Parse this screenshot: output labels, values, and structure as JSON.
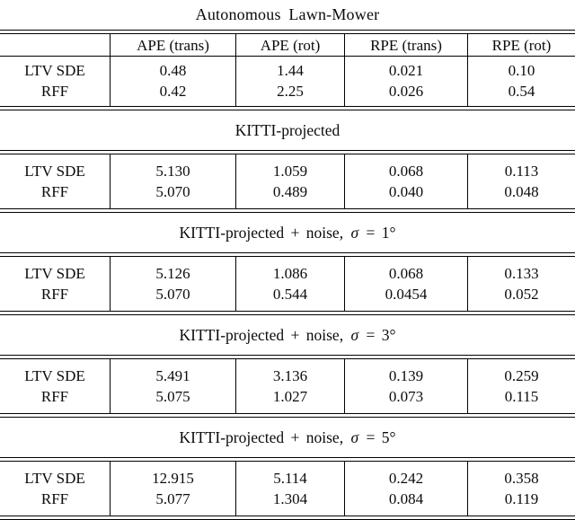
{
  "page": {
    "background_color": "#ffffff",
    "text_color": "#0b0b0b",
    "rule_color": "#000000"
  },
  "table": {
    "columns": [
      "",
      "APE (trans)",
      "APE (rot)",
      "RPE (trans)",
      "RPE (rot)"
    ],
    "sections": [
      {
        "title": "Autonomous Lawn-Mower",
        "rows": [
          {
            "label": "LTV SDE",
            "values": [
              "0.48",
              "1.44",
              "0.021",
              "0.10"
            ]
          },
          {
            "label": "RFF",
            "values": [
              "0.42",
              "2.25",
              "0.026",
              "0.54"
            ]
          }
        ]
      },
      {
        "title": "KITTI-projected",
        "rows": [
          {
            "label": "LTV SDE",
            "values": [
              "5.130",
              "1.059",
              "0.068",
              "0.113"
            ]
          },
          {
            "label": "RFF",
            "values": [
              "5.070",
              "0.489",
              "0.040",
              "0.048"
            ]
          }
        ]
      },
      {
        "title_prefix": "KITTI-projected + noise, ",
        "sigma": "σ",
        "title_suffix": " = 1°",
        "rows": [
          {
            "label": "LTV SDE",
            "values": [
              "5.126",
              "1.086",
              "0.068",
              "0.133"
            ]
          },
          {
            "label": "RFF",
            "values": [
              "5.070",
              "0.544",
              "0.0454",
              "0.052"
            ]
          }
        ]
      },
      {
        "title_prefix": "KITTI-projected + noise, ",
        "sigma": "σ",
        "title_suffix": " = 3°",
        "rows": [
          {
            "label": "LTV SDE",
            "values": [
              "5.491",
              "3.136",
              "0.139",
              "0.259"
            ]
          },
          {
            "label": "RFF",
            "values": [
              "5.075",
              "1.027",
              "0.073",
              "0.115"
            ]
          }
        ]
      },
      {
        "title_prefix": "KITTI-projected + noise, ",
        "sigma": "σ",
        "title_suffix": " = 5°",
        "rows": [
          {
            "label": "LTV SDE",
            "values": [
              "12.915",
              "5.114",
              "0.242",
              "0.358"
            ]
          },
          {
            "label": "RFF",
            "values": [
              "5.077",
              "1.304",
              "0.084",
              "0.119"
            ]
          }
        ]
      }
    ]
  }
}
